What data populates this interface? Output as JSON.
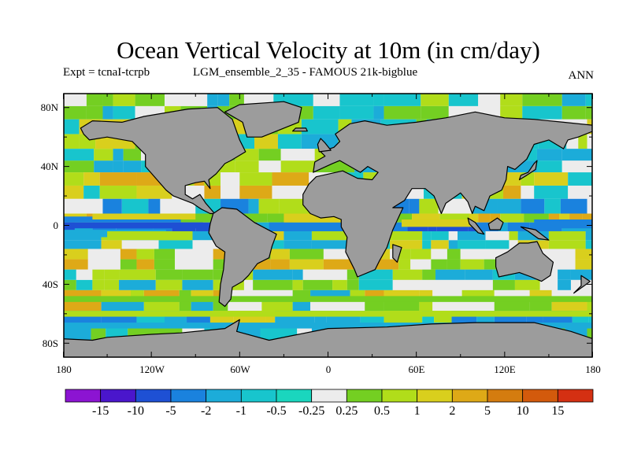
{
  "title": "Ocean Vertical Velocity at 10m (in cm/day)",
  "experiment": "Expt = tcnaI-tcrpb",
  "run": "LGM_ensemble_2_35 - FAMOUS 21k-bigblue",
  "season": "ANN",
  "latitude_labels": [
    "80N",
    "40N",
    "0",
    "40S",
    "80S"
  ],
  "longitude_labels": [
    "180",
    "120W",
    "60W",
    "0",
    "60E",
    "120E",
    "180"
  ],
  "colorbar": {
    "labels": [
      "-15",
      "-10",
      "-5",
      "-2",
      "-1",
      "-0.5",
      "-0.25",
      "0.25",
      "0.5",
      "1",
      "2",
      "5",
      "10",
      "15"
    ],
    "colors": [
      "#8c14d2",
      "#4a16cc",
      "#1e50d4",
      "#1a82de",
      "#1cacd9",
      "#18c5cd",
      "#1ad6be",
      "#ececec",
      "#74cf22",
      "#b1dd1a",
      "#d9cf1d",
      "#dea917",
      "#d47c0f",
      "#d35a0c",
      "#d43012"
    ]
  },
  "land_color": "#9c9c9c",
  "chart_data": {
    "type": "map",
    "projection": "cylindrical equidistant",
    "lon_range": [
      -180,
      180
    ],
    "lat_range": [
      -90,
      90
    ],
    "field": "ocean vertical velocity at 10m",
    "units": "cm/day",
    "contour_levels": [
      -15,
      -10,
      -5,
      -2,
      -1,
      -0.5,
      -0.25,
      0.25,
      0.5,
      1,
      2,
      5,
      10,
      15
    ],
    "features": {
      "equatorial_upwelling_eastern_pacific": [
        2,
        10
      ],
      "off_equator_downwelling_pacific": [
        -5,
        -1
      ],
      "southern_ocean_upwelling": [
        0.5,
        5
      ],
      "subtropical_gyre_downwelling": [
        -2,
        -0.25
      ]
    }
  }
}
